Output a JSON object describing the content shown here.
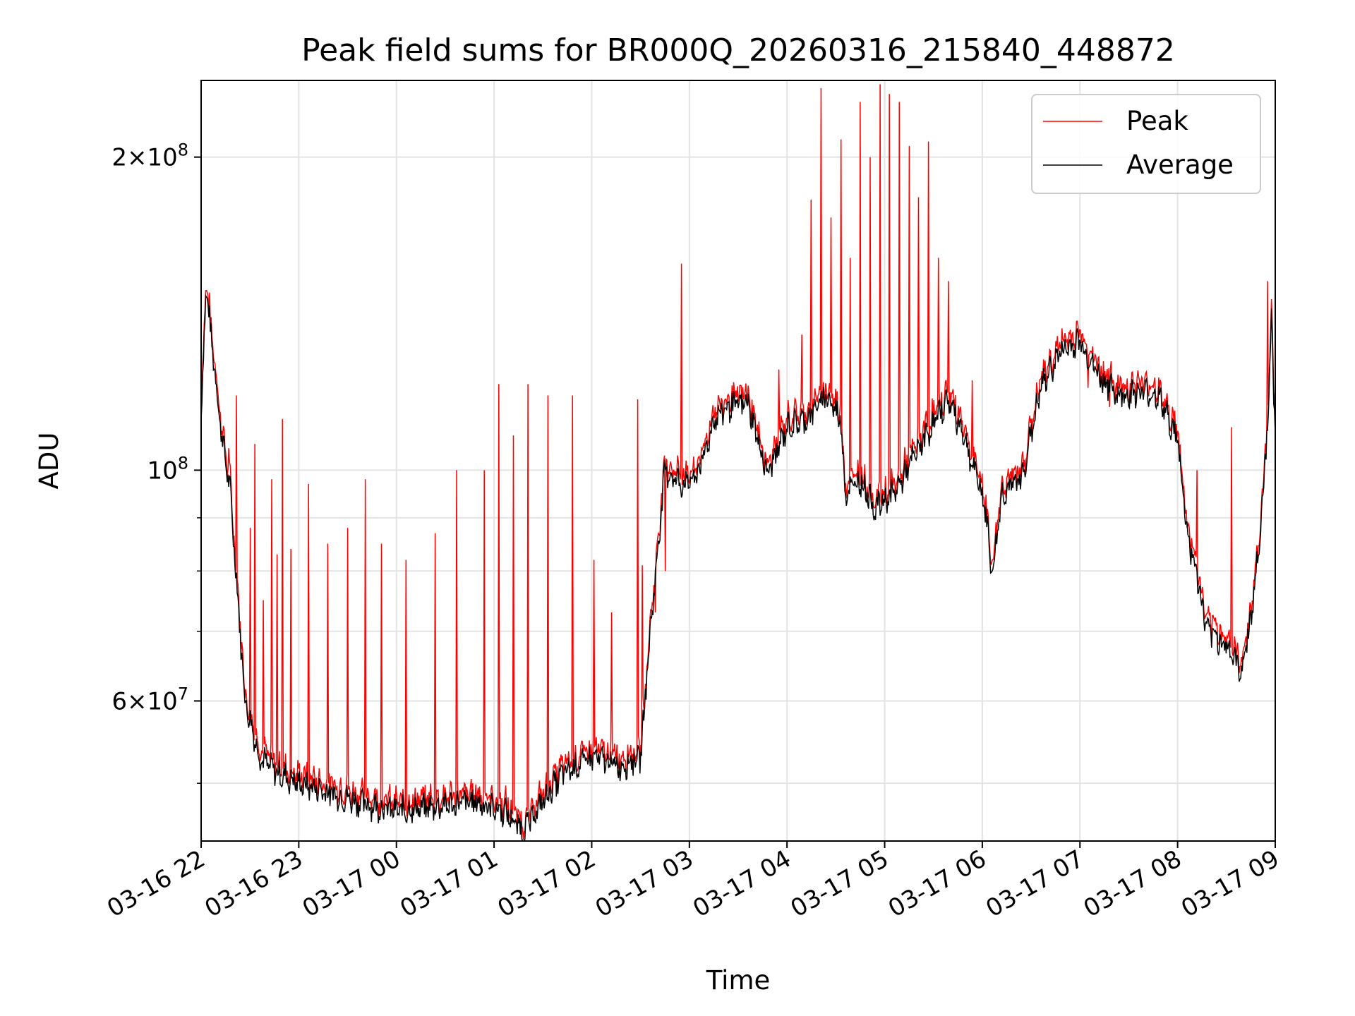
{
  "chart_data": {
    "type": "line",
    "title": "Peak field sums for BR000Q_20260316_215840_448872",
    "xlabel": "Time",
    "ylabel": "ADU",
    "yscale": "log",
    "grid": true,
    "legend_position": "top-right",
    "xlim": [
      "2026-03-16 22:00",
      "2026-03-17 09:00"
    ],
    "ylim": [
      44000000,
      237000000
    ],
    "x_tick_labels": [
      "03-16 22",
      "03-16 23",
      "03-17 00",
      "03-17 01",
      "03-17 02",
      "03-17 03",
      "03-17 04",
      "03-17 05",
      "03-17 06",
      "03-17 07",
      "03-17 08",
      "03-17 09"
    ],
    "y_major_ticks": [
      {
        "value": 60000000,
        "mantissa": "6",
        "exponent": "7"
      },
      {
        "value": 100000000,
        "mantissa": "",
        "exponent": "8"
      },
      {
        "value": 200000000,
        "mantissa": "2",
        "exponent": "8"
      }
    ],
    "y_minor_ticks": [
      50000000,
      70000000,
      80000000,
      90000000
    ],
    "baseline_hours": [
      0,
      0.05,
      0.12,
      0.2,
      0.3,
      0.45,
      0.6,
      0.8,
      1.0,
      1.3,
      1.6,
      2.0,
      2.4,
      2.8,
      3.1,
      3.3,
      3.5,
      3.7,
      4.0,
      4.3,
      4.5,
      4.6,
      4.75,
      4.85,
      4.95,
      5.05,
      5.15,
      5.25,
      5.4,
      5.6,
      5.8,
      6.0,
      6.2,
      6.4,
      6.55,
      6.6,
      6.75,
      6.9,
      7.1,
      7.4,
      7.65,
      7.8,
      7.9,
      8.0,
      8.05,
      8.1,
      8.2,
      8.4,
      8.6,
      8.8,
      9.0,
      9.2,
      9.4,
      9.6,
      9.8,
      10.0,
      10.1,
      10.2,
      10.3,
      10.5,
      10.65,
      10.75,
      10.85,
      10.93,
      10.96,
      11.0
    ],
    "baseline_values": [
      112000000,
      150000000,
      130000000,
      110000000,
      95000000,
      60000000,
      53000000,
      51000000,
      50000000,
      49000000,
      48000000,
      47000000,
      47500000,
      48000000,
      47000000,
      45000000,
      48000000,
      51000000,
      53000000,
      52000000,
      53000000,
      70000000,
      100000000,
      98000000,
      97000000,
      98000000,
      103000000,
      112000000,
      115000000,
      116000000,
      99000000,
      110000000,
      112000000,
      118000000,
      112000000,
      95000000,
      98000000,
      92000000,
      95000000,
      107000000,
      117000000,
      109000000,
      101000000,
      95000000,
      89000000,
      79000000,
      95000000,
      98000000,
      120000000,
      130000000,
      133000000,
      123000000,
      118000000,
      119000000,
      118000000,
      107000000,
      87000000,
      79000000,
      70000000,
      68000000,
      64000000,
      72000000,
      87000000,
      115000000,
      141000000,
      108000000
    ],
    "peak_spikes": [
      {
        "hour": 0.28,
        "value": 105000000
      },
      {
        "hour": 0.36,
        "value": 118000000
      },
      {
        "hour": 0.5,
        "value": 88000000
      },
      {
        "hour": 0.55,
        "value": 106000000
      },
      {
        "hour": 0.64,
        "value": 75000000
      },
      {
        "hour": 0.72,
        "value": 98000000
      },
      {
        "hour": 0.78,
        "value": 83000000
      },
      {
        "hour": 0.83,
        "value": 112000000
      },
      {
        "hour": 0.92,
        "value": 84000000
      },
      {
        "hour": 1.1,
        "value": 97000000
      },
      {
        "hour": 1.3,
        "value": 85000000
      },
      {
        "hour": 1.5,
        "value": 88000000
      },
      {
        "hour": 1.68,
        "value": 98000000
      },
      {
        "hour": 1.85,
        "value": 85000000
      },
      {
        "hour": 2.1,
        "value": 82000000
      },
      {
        "hour": 2.4,
        "value": 87000000
      },
      {
        "hour": 2.62,
        "value": 100000000
      },
      {
        "hour": 2.9,
        "value": 100000000
      },
      {
        "hour": 3.05,
        "value": 121000000
      },
      {
        "hour": 3.2,
        "value": 108000000
      },
      {
        "hour": 3.35,
        "value": 121000000
      },
      {
        "hour": 3.55,
        "value": 118000000
      },
      {
        "hour": 3.8,
        "value": 118000000
      },
      {
        "hour": 4.02,
        "value": 82000000
      },
      {
        "hour": 4.2,
        "value": 73000000
      },
      {
        "hour": 4.47,
        "value": 117000000
      },
      {
        "hour": 4.52,
        "value": 81000000
      },
      {
        "hour": 4.65,
        "value": 73000000
      },
      {
        "hour": 4.75,
        "value": 80000000
      },
      {
        "hour": 4.92,
        "value": 158000000
      },
      {
        "hour": 5.92,
        "value": 125000000
      },
      {
        "hour": 6.15,
        "value": 135000000
      },
      {
        "hour": 6.25,
        "value": 182000000
      },
      {
        "hour": 6.35,
        "value": 233000000
      },
      {
        "hour": 6.45,
        "value": 175000000
      },
      {
        "hour": 6.55,
        "value": 208000000
      },
      {
        "hour": 6.65,
        "value": 160000000
      },
      {
        "hour": 6.75,
        "value": 226000000
      },
      {
        "hour": 6.85,
        "value": 200000000
      },
      {
        "hour": 6.95,
        "value": 235000000
      },
      {
        "hour": 7.05,
        "value": 230000000
      },
      {
        "hour": 7.15,
        "value": 226000000
      },
      {
        "hour": 7.25,
        "value": 205000000
      },
      {
        "hour": 7.35,
        "value": 183000000
      },
      {
        "hour": 7.45,
        "value": 207000000
      },
      {
        "hour": 7.55,
        "value": 160000000
      },
      {
        "hour": 7.65,
        "value": 152000000
      },
      {
        "hour": 7.9,
        "value": 122000000
      },
      {
        "hour": 9.08,
        "value": 120000000
      },
      {
        "hour": 9.3,
        "value": 115000000
      },
      {
        "hour": 10.1,
        "value": 88000000
      },
      {
        "hour": 10.2,
        "value": 100000000
      },
      {
        "hour": 10.55,
        "value": 110000000
      },
      {
        "hour": 10.92,
        "value": 152000000
      }
    ],
    "series": [
      {
        "name": "Peak",
        "color": "#ff0000"
      },
      {
        "name": "Average",
        "color": "#000000"
      }
    ]
  }
}
